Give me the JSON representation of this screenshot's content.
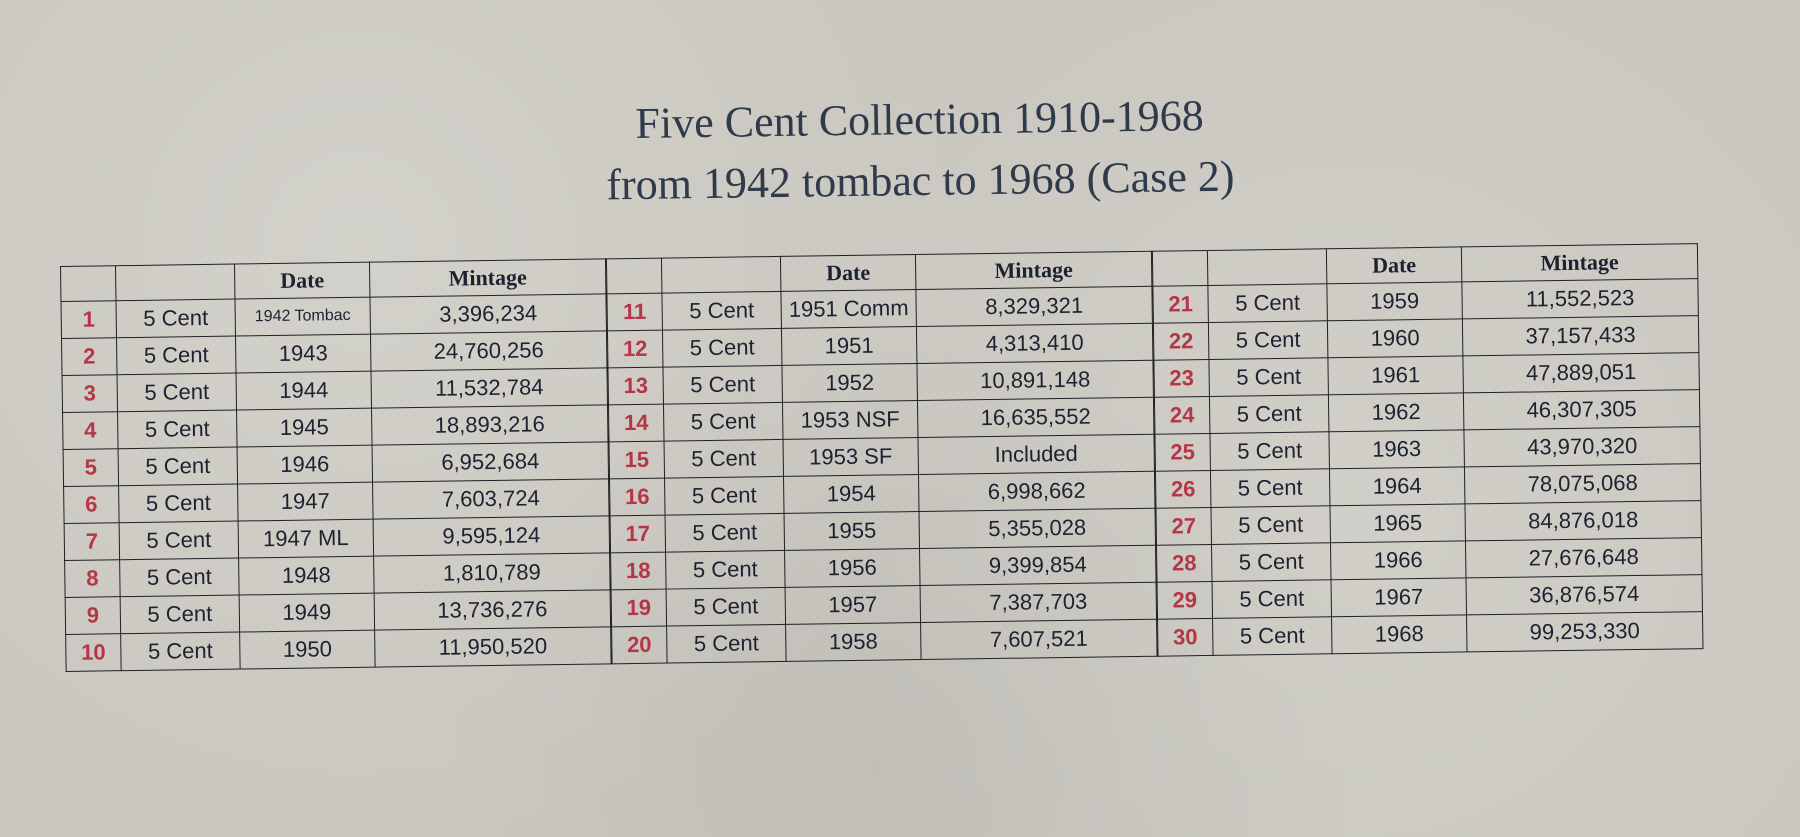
{
  "title": {
    "line1": "Five Cent Collection 1910-1968",
    "line2": "from 1942 tombac to 1968 (Case 2)"
  },
  "headers": {
    "date": "Date",
    "mintage": "Mintage"
  },
  "panels": [
    {
      "rows": [
        {
          "num": "1",
          "denom": "5 Cent",
          "date": "1942 Tombac",
          "mintage": "3,396,234"
        },
        {
          "num": "2",
          "denom": "5 Cent",
          "date": "1943",
          "mintage": "24,760,256"
        },
        {
          "num": "3",
          "denom": "5 Cent",
          "date": "1944",
          "mintage": "11,532,784"
        },
        {
          "num": "4",
          "denom": "5 Cent",
          "date": "1945",
          "mintage": "18,893,216"
        },
        {
          "num": "5",
          "denom": "5 Cent",
          "date": "1946",
          "mintage": "6,952,684"
        },
        {
          "num": "6",
          "denom": "5 Cent",
          "date": "1947",
          "mintage": "7,603,724"
        },
        {
          "num": "7",
          "denom": "5 Cent",
          "date": "1947 ML",
          "mintage": "9,595,124"
        },
        {
          "num": "8",
          "denom": "5 Cent",
          "date": "1948",
          "mintage": "1,810,789"
        },
        {
          "num": "9",
          "denom": "5 Cent",
          "date": "1949",
          "mintage": "13,736,276"
        },
        {
          "num": "10",
          "denom": "5 Cent",
          "date": "1950",
          "mintage": "11,950,520"
        }
      ]
    },
    {
      "rows": [
        {
          "num": "11",
          "denom": "5 Cent",
          "date": "1951 Comm",
          "mintage": "8,329,321"
        },
        {
          "num": "12",
          "denom": "5 Cent",
          "date": "1951",
          "mintage": "4,313,410"
        },
        {
          "num": "13",
          "denom": "5 Cent",
          "date": "1952",
          "mintage": "10,891,148"
        },
        {
          "num": "14",
          "denom": "5 Cent",
          "date": "1953 NSF",
          "mintage": "16,635,552"
        },
        {
          "num": "15",
          "denom": "5 Cent",
          "date": "1953 SF",
          "mintage": "Included"
        },
        {
          "num": "16",
          "denom": "5 Cent",
          "date": "1954",
          "mintage": "6,998,662"
        },
        {
          "num": "17",
          "denom": "5 Cent",
          "date": "1955",
          "mintage": "5,355,028"
        },
        {
          "num": "18",
          "denom": "5 Cent",
          "date": "1956",
          "mintage": "9,399,854"
        },
        {
          "num": "19",
          "denom": "5 Cent",
          "date": "1957",
          "mintage": "7,387,703"
        },
        {
          "num": "20",
          "denom": "5 Cent",
          "date": "1958",
          "mintage": "7,607,521"
        }
      ]
    },
    {
      "rows": [
        {
          "num": "21",
          "denom": "5 Cent",
          "date": "1959",
          "mintage": "11,552,523"
        },
        {
          "num": "22",
          "denom": "5 Cent",
          "date": "1960",
          "mintage": "37,157,433"
        },
        {
          "num": "23",
          "denom": "5 Cent",
          "date": "1961",
          "mintage": "47,889,051"
        },
        {
          "num": "24",
          "denom": "5 Cent",
          "date": "1962",
          "mintage": "46,307,305"
        },
        {
          "num": "25",
          "denom": "5 Cent",
          "date": "1963",
          "mintage": "43,970,320"
        },
        {
          "num": "26",
          "denom": "5 Cent",
          "date": "1964",
          "mintage": "78,075,068"
        },
        {
          "num": "27",
          "denom": "5 Cent",
          "date": "1965",
          "mintage": "84,876,018"
        },
        {
          "num": "28",
          "denom": "5 Cent",
          "date": "1966",
          "mintage": "27,676,648"
        },
        {
          "num": "29",
          "denom": "5 Cent",
          "date": "1967",
          "mintage": "36,876,574"
        },
        {
          "num": "30",
          "denom": "5 Cent",
          "date": "1968",
          "mintage": "99,253,330"
        }
      ]
    }
  ],
  "colors": {
    "number": "#b53646",
    "text": "#1c2230",
    "paper": "#c9c7bf"
  }
}
